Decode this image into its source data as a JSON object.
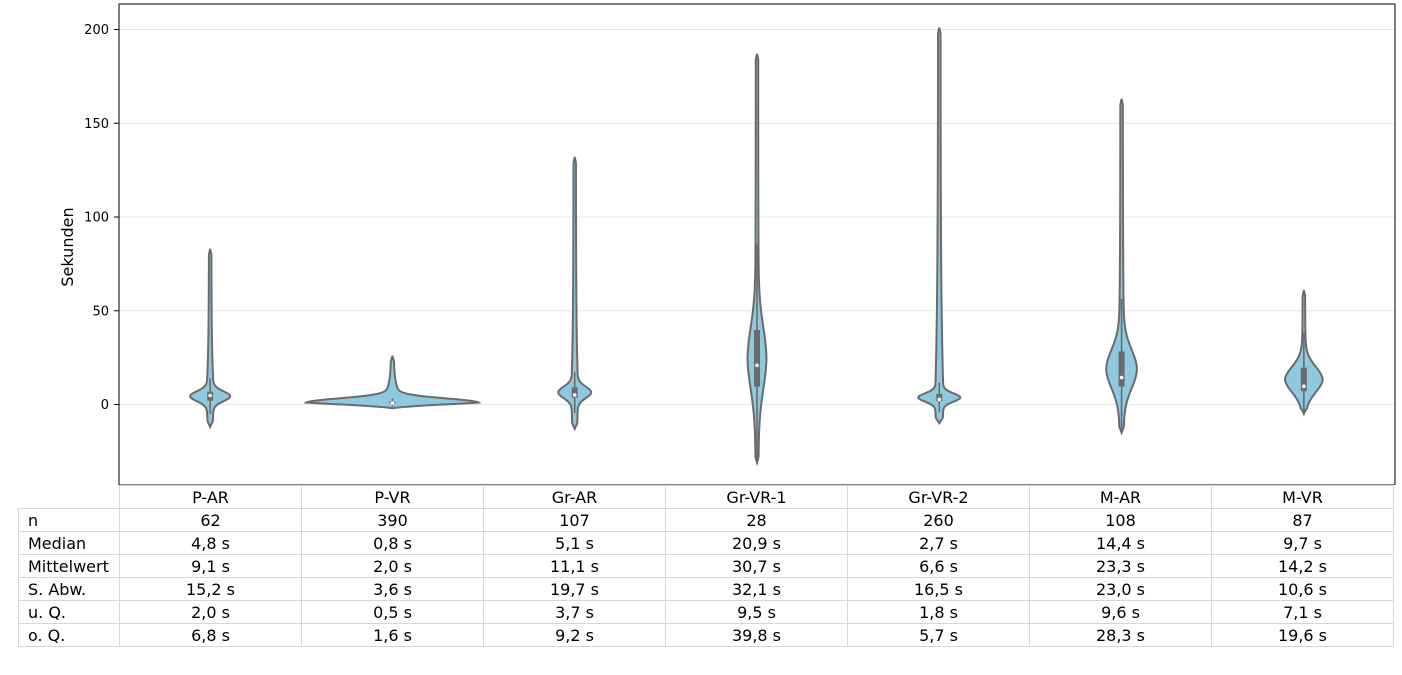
{
  "chart_data": {
    "type": "violin",
    "ylabel": "Sekunden",
    "y_ticks": [
      0,
      50,
      100,
      150,
      200
    ],
    "ylim": [
      -43,
      213
    ],
    "grid": true,
    "color": "#8ec9e0",
    "line_color": "#6b6b6b",
    "categories": [
      "P-AR",
      "P-VR",
      "Gr-AR",
      "Gr-VR-1",
      "Gr-VR-2",
      "M-AR",
      "M-VR"
    ],
    "violin_ranges": [
      [
        -12,
        83
      ],
      [
        -2,
        26
      ],
      [
        -13,
        132
      ],
      [
        -31,
        187
      ],
      [
        -10,
        201
      ],
      [
        -15,
        163
      ],
      [
        -5,
        61
      ]
    ],
    "violin_max_halfwidth": [
      16,
      72,
      13,
      7,
      17,
      12,
      15
    ],
    "stats_rows": [
      {
        "label": "n",
        "values": [
          "62",
          "390",
          "107",
          "28",
          "260",
          "108",
          "87"
        ]
      },
      {
        "label": "Median",
        "values": [
          "4,8 s",
          "0,8 s",
          "5,1 s",
          "20,9 s",
          "2,7 s",
          "14,4 s",
          "9,7 s"
        ]
      },
      {
        "label": "Mittelwert",
        "values": [
          "9,1 s",
          "2,0 s",
          "11,1 s",
          "30,7 s",
          "6,6 s",
          "23,3 s",
          "14,2 s"
        ]
      },
      {
        "label": "S. Abw.",
        "values": [
          "15,2 s",
          "3,6 s",
          "19,7 s",
          "32,1 s",
          "16,5 s",
          "23,0 s",
          "10,6 s"
        ]
      },
      {
        "label": "u. Q.",
        "values": [
          "2,0 s",
          "0,5 s",
          "3,7 s",
          "9,5 s",
          "1,8 s",
          "9,6 s",
          "7,1 s"
        ]
      },
      {
        "label": "o. Q.",
        "values": [
          "6,8 s",
          "1,6 s",
          "9,2 s",
          "39,8 s",
          "5,7 s",
          "28,3 s",
          "19,6 s"
        ]
      }
    ],
    "quartiles": [
      {
        "q1": 2.0,
        "median": 4.8,
        "q3": 6.8
      },
      {
        "q1": 0.5,
        "median": 0.8,
        "q3": 1.6
      },
      {
        "q1": 3.7,
        "median": 5.1,
        "q3": 9.2
      },
      {
        "q1": 9.5,
        "median": 20.9,
        "q3": 39.8
      },
      {
        "q1": 1.8,
        "median": 2.7,
        "q3": 5.7
      },
      {
        "q1": 9.6,
        "median": 14.4,
        "q3": 28.3
      },
      {
        "q1": 7.1,
        "median": 9.7,
        "q3": 19.6
      }
    ]
  }
}
